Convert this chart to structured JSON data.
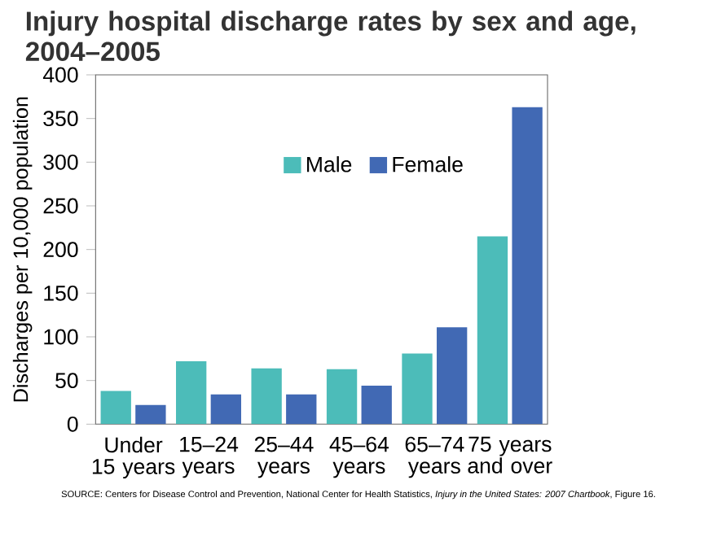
{
  "chart_data": {
    "type": "bar",
    "title": "Injury hospital discharge rates by sex and age, 2004–2005",
    "ylabel": "Discharges per 10,000 population",
    "categories": [
      "Under 15 years",
      "15–24 years",
      "25–44 years",
      "45–64 years",
      "65–74 years",
      "75 years and over"
    ],
    "series": [
      {
        "name": "Male",
        "color": "#4cbcb9",
        "values": [
          38,
          72,
          64,
          63,
          81,
          215
        ]
      },
      {
        "name": "Female",
        "color": "#4169b4",
        "values": [
          22,
          34,
          34,
          44,
          111,
          363
        ]
      }
    ],
    "ylim": [
      0,
      400
    ],
    "yticks": [
      0,
      50,
      100,
      150,
      200,
      250,
      300,
      350,
      400
    ],
    "legend": "top",
    "grid": false,
    "annotations": [
      "SOURCE: Centers for Disease Control and Prevention, National Center for Health Statistics, *Injury in the United States: 2007 Chartbook*, Figure 16."
    ]
  }
}
